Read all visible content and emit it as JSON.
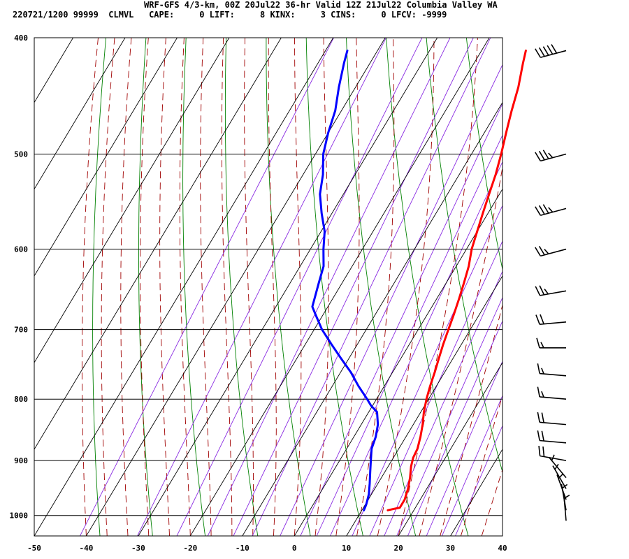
{
  "header": {
    "line1": "WRF-GFS 4/3-km, 00Z 20Jul22 36-hr Valid 12Z 21Jul22 Columbia Valley WA",
    "line2": "220721/1200 99999  CLMVL   CAPE:     0 LIFT:     8 KINX:     3 CINS:     0 LFCV: -9999"
  },
  "chart_data": {
    "type": "line",
    "subtype": "skew-T log-P sounding",
    "title": "",
    "xlabel": "",
    "ylabel": "",
    "xlim": [
      -50,
      40
    ],
    "ylim": [
      1040,
      400
    ],
    "x_ticks": [
      "-50",
      "-40",
      "-30",
      "-20",
      "-10",
      "0",
      "10",
      "20",
      "30",
      "40"
    ],
    "y_ticks": [
      "400",
      "500",
      "600",
      "700",
      "800",
      "900",
      "1000"
    ],
    "grid": true,
    "series": [
      {
        "color": "#ff0000",
        "p": [
          990,
          985,
          970,
          950,
          930,
          910,
          895,
          880,
          860,
          840,
          820,
          800,
          780,
          760,
          740,
          720,
          700,
          680,
          660,
          640,
          620,
          600,
          580,
          560,
          540,
          520,
          500,
          480,
          460,
          440,
          420,
          410
        ],
        "t": [
          15.0,
          17.0,
          17.0,
          16.4,
          15.5,
          14.4,
          13.8,
          13.6,
          12.8,
          11.8,
          10.6,
          9.6,
          8.8,
          8.1,
          7.3,
          6.5,
          5.8,
          5.1,
          4.3,
          3.4,
          2.4,
          1.0,
          0.0,
          -1.0,
          -2.0,
          -3.0,
          -4.3,
          -5.8,
          -7.3,
          -8.7,
          -10.6,
          -11.5
        ]
      },
      {
        "color": "#0000ff",
        "p": [
          990,
          980,
          960,
          940,
          920,
          900,
          880,
          860,
          840,
          820,
          810,
          800,
          780,
          760,
          740,
          720,
          700,
          680,
          670,
          640,
          620,
          600,
          580,
          560,
          540,
          520,
          500,
          480,
          460,
          440,
          420,
          410
        ],
        "t": [
          10.4,
          10.2,
          9.5,
          8.4,
          7.2,
          6.0,
          4.8,
          4.2,
          3.2,
          1.6,
          -0.3,
          -1.8,
          -5.0,
          -8.0,
          -11.5,
          -15.0,
          -18.5,
          -21.5,
          -23.0,
          -24.5,
          -25.5,
          -27.5,
          -29.3,
          -32.0,
          -34.5,
          -36.2,
          -38.5,
          -40.0,
          -41.2,
          -43.2,
          -45.0,
          -45.8
        ]
      }
    ],
    "wind_barbs": [
      {
        "p": 410,
        "speed_kt": 50,
        "dir_deg": 255
      },
      {
        "p": 500,
        "speed_kt": 35,
        "dir_deg": 255
      },
      {
        "p": 555,
        "speed_kt": 35,
        "dir_deg": 255
      },
      {
        "p": 600,
        "speed_kt": 25,
        "dir_deg": 255
      },
      {
        "p": 650,
        "speed_kt": 25,
        "dir_deg": 260
      },
      {
        "p": 690,
        "speed_kt": 20,
        "dir_deg": 265
      },
      {
        "p": 725,
        "speed_kt": 15,
        "dir_deg": 270
      },
      {
        "p": 765,
        "speed_kt": 15,
        "dir_deg": 275
      },
      {
        "p": 800,
        "speed_kt": 15,
        "dir_deg": 275
      },
      {
        "p": 840,
        "speed_kt": 20,
        "dir_deg": 275
      },
      {
        "p": 870,
        "speed_kt": 20,
        "dir_deg": 275
      },
      {
        "p": 900,
        "speed_kt": 20,
        "dir_deg": 280
      },
      {
        "p": 930,
        "speed_kt": 5,
        "dir_deg": 320
      },
      {
        "p": 950,
        "speed_kt": 5,
        "dir_deg": 330
      },
      {
        "p": 970,
        "speed_kt": 5,
        "dir_deg": 340
      },
      {
        "p": 990,
        "speed_kt": 5,
        "dir_deg": 350
      },
      {
        "p": 1010,
        "speed_kt": 5,
        "dir_deg": 355
      }
    ],
    "reference_lines": {
      "isotherm_color": "#000000",
      "dry_adiabat_color": "#008000",
      "moist_adiabat_color": "#a00000",
      "mixing_ratio_color": "#8a2be2"
    }
  }
}
